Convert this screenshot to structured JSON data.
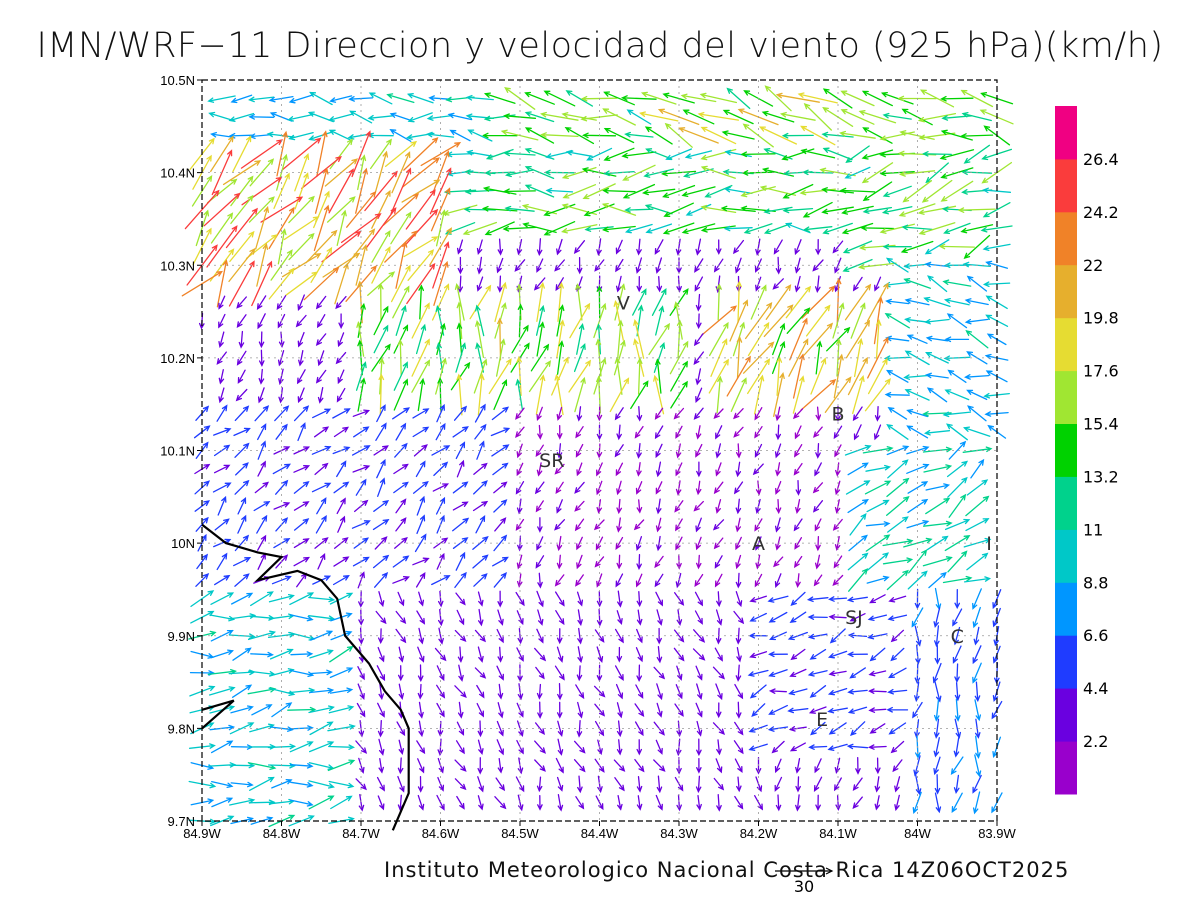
{
  "title": "IMN/WRF−11 Direccion y velocidad del viento (925 hPa)(km/h)",
  "credit": "Instituto Meteorologico Nacional Costa Rica 14Z06OCT2025",
  "reference_vector": {
    "label": "30",
    "speed_kmh": 30
  },
  "chart_data": {
    "type": "vector-field",
    "title": "IMN/WRF−11 Direccion y velocidad del viento (925 hPa)(km/h)",
    "variable": "Direccion y velocidad del viento (925 hPa)",
    "units": "km/h",
    "valid_time": "14Z06OCT2025",
    "xlim": [
      -84.9,
      -83.9
    ],
    "ylim": [
      9.7,
      10.5
    ],
    "x_ticks": [
      {
        "value": -84.9,
        "label": "84.9W"
      },
      {
        "value": -84.8,
        "label": "84.8W"
      },
      {
        "value": -84.7,
        "label": "84.7W"
      },
      {
        "value": -84.6,
        "label": "84.6W"
      },
      {
        "value": -84.5,
        "label": "84.5W"
      },
      {
        "value": -84.4,
        "label": "84.4W"
      },
      {
        "value": -84.3,
        "label": "84.3W"
      },
      {
        "value": -84.2,
        "label": "84.2W"
      },
      {
        "value": -84.1,
        "label": "84.1W"
      },
      {
        "value": -84.0,
        "label": "84W"
      },
      {
        "value": -83.9,
        "label": "83.9W"
      }
    ],
    "y_ticks": [
      {
        "value": 9.7,
        "label": "9.7N"
      },
      {
        "value": 9.8,
        "label": "9.8N"
      },
      {
        "value": 9.9,
        "label": "9.9N"
      },
      {
        "value": 10.0,
        "label": "10N"
      },
      {
        "value": 10.1,
        "label": "10.1N"
      },
      {
        "value": 10.2,
        "label": "10.2N"
      },
      {
        "value": 10.3,
        "label": "10.3N"
      },
      {
        "value": 10.4,
        "label": "10.4N"
      },
      {
        "value": 10.5,
        "label": "10.5N"
      }
    ],
    "grid": true,
    "colorbar": {
      "position": "right",
      "labels": [
        "2.2",
        "4.4",
        "6.6",
        "8.8",
        "11",
        "13.2",
        "15.4",
        "17.6",
        "19.8",
        "22",
        "24.2",
        "26.4"
      ],
      "bins": [
        {
          "min": 0.0,
          "max": 2.2,
          "color": "#9900cc"
        },
        {
          "min": 2.2,
          "max": 4.4,
          "color": "#6a00e0"
        },
        {
          "min": 4.4,
          "max": 6.6,
          "color": "#1f3cff"
        },
        {
          "min": 6.6,
          "max": 8.8,
          "color": "#0096ff"
        },
        {
          "min": 8.8,
          "max": 11,
          "color": "#00c8c8"
        },
        {
          "min": 11,
          "max": 13.2,
          "color": "#00d28c"
        },
        {
          "min": 13.2,
          "max": 15.4,
          "color": "#00d200"
        },
        {
          "min": 15.4,
          "max": 17.6,
          "color": "#a0e632"
        },
        {
          "min": 17.6,
          "max": 19.8,
          "color": "#e6dc32"
        },
        {
          "min": 19.8,
          "max": 22,
          "color": "#e6af2d"
        },
        {
          "min": 22,
          "max": 24.2,
          "color": "#f08228"
        },
        {
          "min": 24.2,
          "max": 26.4,
          "color": "#fa3c3c"
        },
        {
          "min": 26.4,
          "max": 28.6,
          "color": "#f00082"
        }
      ]
    },
    "stations": [
      {
        "code": "V",
        "lon": -84.37,
        "lat": 10.26
      },
      {
        "code": "B",
        "lon": -84.1,
        "lat": 10.14
      },
      {
        "code": "SR",
        "lon": -84.46,
        "lat": 10.09
      },
      {
        "code": "A",
        "lon": -84.2,
        "lat": 10.0
      },
      {
        "code": "I",
        "lon": -83.91,
        "lat": 10.0
      },
      {
        "code": "SJ",
        "lon": -84.08,
        "lat": 9.92
      },
      {
        "code": "C",
        "lon": -83.95,
        "lat": 9.9
      },
      {
        "code": "E",
        "lon": -84.12,
        "lat": 9.81
      }
    ],
    "coastline": [
      [
        -84.9,
        10.02
      ],
      [
        -84.87,
        10.0
      ],
      [
        -84.83,
        9.99
      ],
      [
        -84.8,
        9.985
      ],
      [
        -84.83,
        9.96
      ],
      [
        -84.78,
        9.97
      ],
      [
        -84.75,
        9.96
      ],
      [
        -84.73,
        9.94
      ],
      [
        -84.72,
        9.9
      ],
      [
        -84.69,
        9.87
      ],
      [
        -84.67,
        9.84
      ],
      [
        -84.65,
        9.82
      ],
      [
        -84.64,
        9.8
      ],
      [
        -84.64,
        9.73
      ],
      [
        -84.66,
        9.69
      ]
    ],
    "coastline_inlet": [
      [
        -84.9,
        9.82
      ],
      [
        -84.86,
        9.83
      ],
      [
        -84.9,
        9.8
      ]
    ],
    "vectors": {
      "x_start": -84.9,
      "x_step": 0.025,
      "y_start": 10.48,
      "y_step": -0.02,
      "columns": 41,
      "rows": 40,
      "regions": [
        {
          "x": [
            -84.9,
            -83.9
          ],
          "y": [
            10.43,
            10.5
          ],
          "dir_deg": 275,
          "speed": 9
        },
        {
          "x": [
            -84.55,
            -83.9
          ],
          "y": [
            10.43,
            10.5
          ],
          "dir_deg": 282,
          "speed": 14
        },
        {
          "x": [
            -84.35,
            -84.05
          ],
          "y": [
            10.44,
            10.5
          ],
          "dir_deg": 290,
          "speed": 17
        },
        {
          "x": [
            -84.6,
            -84.1
          ],
          "y": [
            10.33,
            10.43
          ],
          "dir_deg": 268,
          "speed": 13
        },
        {
          "x": [
            -84.1,
            -83.9
          ],
          "y": [
            10.3,
            10.43
          ],
          "dir_deg": 250,
          "speed": 14
        },
        {
          "x": [
            -84.9,
            -84.6
          ],
          "y": [
            10.28,
            10.44
          ],
          "dir_deg": 35,
          "speed": 21
        },
        {
          "x": [
            -84.7,
            -84.3
          ],
          "y": [
            10.15,
            10.28
          ],
          "dir_deg": 10,
          "speed": 16
        },
        {
          "x": [
            -84.25,
            -84.05
          ],
          "y": [
            10.15,
            10.28
          ],
          "dir_deg": 25,
          "speed": 19
        },
        {
          "x": [
            -84.05,
            -83.9
          ],
          "y": [
            10.1,
            10.3
          ],
          "dir_deg": 285,
          "speed": 9
        },
        {
          "x": [
            -84.9,
            -84.5
          ],
          "y": [
            9.95,
            10.15
          ],
          "dir_deg": 45,
          "speed": 5
        },
        {
          "x": [
            -84.5,
            -84.1
          ],
          "y": [
            9.95,
            10.15
          ],
          "dir_deg": 200,
          "speed": 2
        },
        {
          "x": [
            -84.1,
            -83.9
          ],
          "y": [
            9.95,
            10.1
          ],
          "dir_deg": 60,
          "speed": 10
        },
        {
          "x": [
            -84.9,
            -84.7
          ],
          "y": [
            9.7,
            9.95
          ],
          "dir_deg": 80,
          "speed": 9
        },
        {
          "x": [
            -84.7,
            -84.2
          ],
          "y": [
            9.7,
            9.95
          ],
          "dir_deg": 160,
          "speed": 3
        },
        {
          "x": [
            -84.2,
            -84.0
          ],
          "y": [
            9.78,
            9.95
          ],
          "dir_deg": 250,
          "speed": 5
        },
        {
          "x": [
            -84.0,
            -83.9
          ],
          "y": [
            9.7,
            9.95
          ],
          "dir_deg": 190,
          "speed": 6
        }
      ]
    }
  }
}
